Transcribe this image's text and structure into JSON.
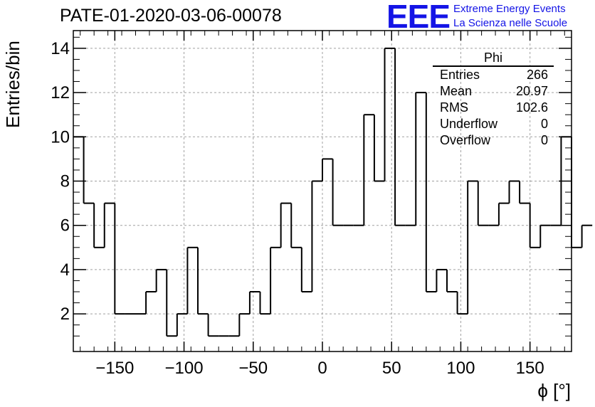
{
  "header": {
    "run_title": "PATE-01-2020-03-06-00078",
    "logo_text": "EEE",
    "logo_line1": "Extreme Energy Events",
    "logo_line2": "La Scienza nelle Scuole"
  },
  "stats_box": {
    "name": "Phi",
    "rows": [
      {
        "label": "Entries",
        "value": "266"
      },
      {
        "label": "Mean",
        "value": "20.97"
      },
      {
        "label": "RMS",
        "value": "102.6"
      },
      {
        "label": "Underflow",
        "value": "0"
      },
      {
        "label": "Overflow",
        "value": "0"
      }
    ]
  },
  "chart_data": {
    "type": "bar",
    "histogram": true,
    "xlabel": "ϕ [°]",
    "ylabel": "Entries/bin",
    "xlim": [
      -180,
      180
    ],
    "ylim": [
      0.3,
      14.8
    ],
    "bin_width": 7.5,
    "bin_start": -180,
    "values": [
      10,
      7,
      5,
      7,
      2,
      2,
      2,
      3,
      4,
      1,
      2,
      5,
      2,
      1,
      1,
      1,
      2,
      3,
      2,
      5,
      7,
      5,
      3,
      8,
      9,
      6,
      6,
      6,
      11,
      8,
      14,
      6,
      6,
      12,
      3,
      4,
      3,
      2,
      8,
      6,
      6,
      7,
      8,
      7,
      5,
      6,
      6,
      10,
      5,
      6
    ],
    "x_ticks": [
      -150,
      -100,
      -50,
      0,
      50,
      100,
      150
    ],
    "x_tick_labels": [
      "−150",
      "−100",
      "−50",
      "0",
      "50",
      "100",
      "150"
    ],
    "y_ticks": [
      2,
      4,
      6,
      8,
      10,
      12,
      14
    ],
    "y_tick_labels": [
      "2",
      "4",
      "6",
      "8",
      "10",
      "12",
      "14"
    ],
    "grid": true,
    "line_color": "#000000",
    "grid_color": "#a0a0a0"
  }
}
